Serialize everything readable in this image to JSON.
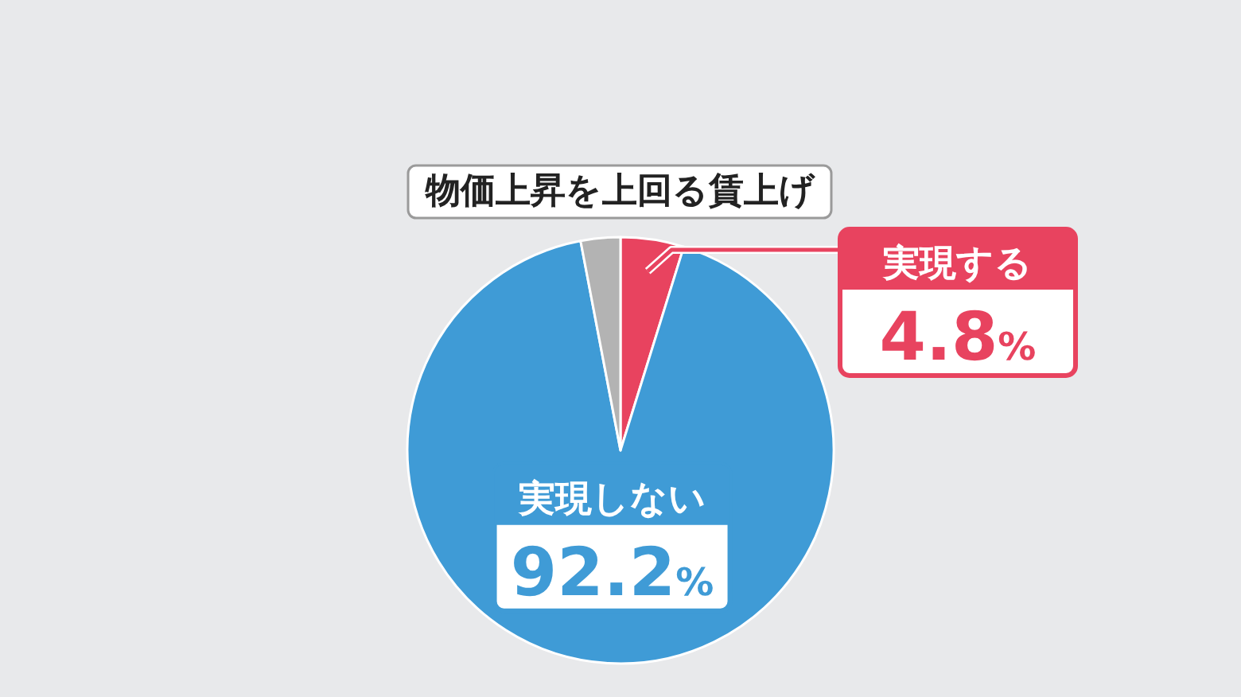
{
  "chart_data": {
    "type": "pie",
    "title": "物価上昇を上回る賃上げ",
    "categories": [
      "実現する",
      "実現しない",
      null
    ],
    "values": [
      4.8,
      92.2,
      3.0
    ],
    "colors": [
      "#e8435f",
      "#3f9bd6",
      "#b3b3b3"
    ],
    "value_labels": [
      "4.8%",
      "92.2%",
      null
    ]
  }
}
